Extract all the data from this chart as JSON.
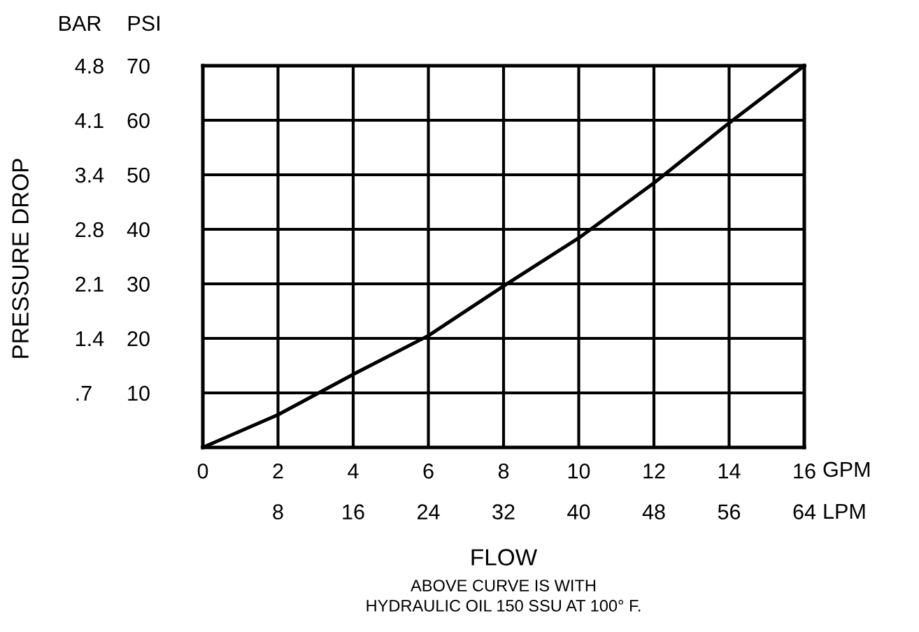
{
  "chart_data": {
    "type": "line",
    "x": [
      0,
      2,
      4,
      6,
      8,
      10,
      12,
      14,
      16
    ],
    "series": [
      {
        "color": "#000000",
        "values": [
          0,
          6,
          13.4,
          20.5,
          29.6,
          38.4,
          48.5,
          59.5,
          70
        ]
      }
    ],
    "xlabel": "GPM",
    "ylabel": "PSI",
    "x2label": "LPM",
    "y2label": "BAR",
    "xlim": [
      0,
      16
    ],
    "xticks": [
      0,
      2,
      4,
      6,
      8,
      10,
      12,
      14,
      16
    ],
    "x2lim": [
      0,
      64
    ],
    "x2ticks": [
      8,
      16,
      24,
      32,
      40,
      48,
      56,
      64
    ],
    "ylim": [
      0,
      70
    ],
    "yticks": [
      10,
      20,
      30,
      40,
      50,
      60,
      70
    ],
    "y2lim": [
      0,
      4.826
    ],
    "y2ticks": [
      {
        "value": 0.689,
        "label": ".7"
      },
      {
        "value": 1.379,
        "label": "1.4"
      },
      {
        "value": 2.068,
        "label": "2.1"
      },
      {
        "value": 2.758,
        "label": "2.8"
      },
      {
        "value": 3.447,
        "label": "3.4"
      },
      {
        "value": 4.137,
        "label": "4.1"
      },
      {
        "value": 4.826,
        "label": "4.8"
      }
    ],
    "annotations": [
      "PRESSURE DROP",
      "FLOW",
      "ABOVE CURVE IS WITH\nHYDRAULIC OIL 150 SSU AT 100° F."
    ],
    "grid": true,
    "marker": "none",
    "line_style": "solid"
  }
}
